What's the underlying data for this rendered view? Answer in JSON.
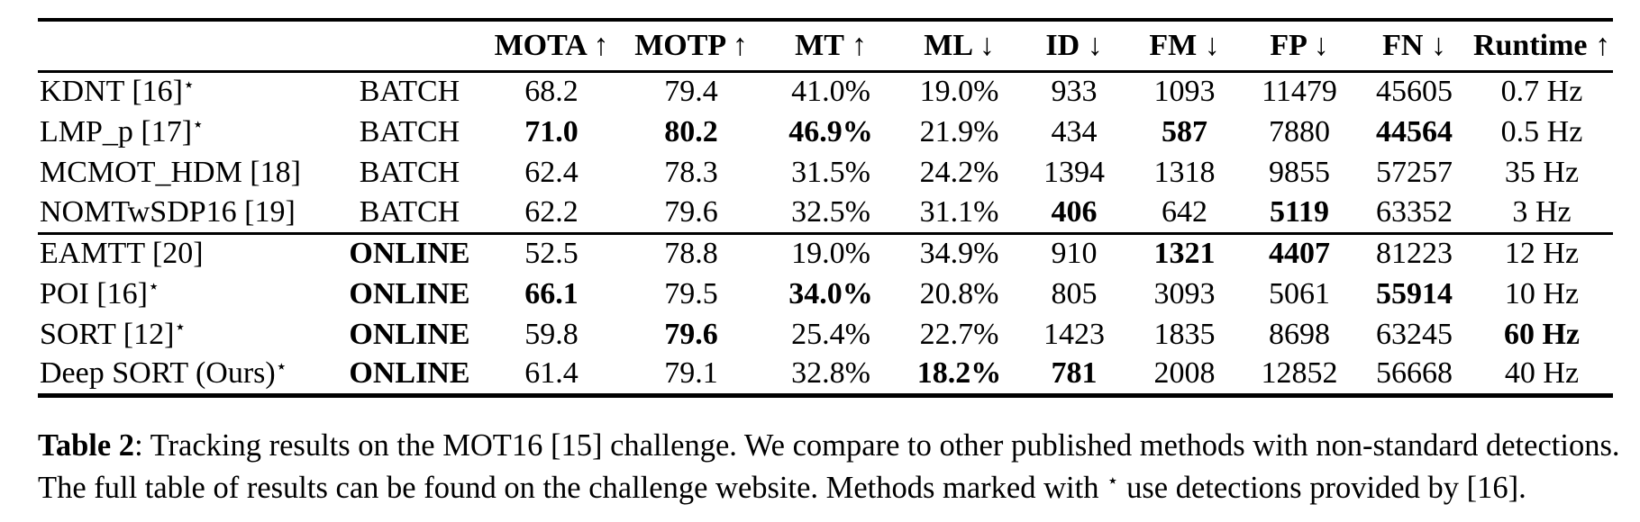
{
  "table": {
    "star_symbol": "⋆",
    "headers": {
      "method": "",
      "mode": "",
      "cols": [
        "MOTA ↑",
        "MOTP ↑",
        "MT ↑",
        "ML ↓",
        "ID ↓",
        "FM ↓",
        "FP ↓",
        "FN ↓",
        "Runtime ↑"
      ]
    },
    "groups": [
      {
        "mode_bold": false,
        "rows": [
          {
            "method": "KDNT [16]",
            "star": true,
            "mode": "BATCH",
            "values": [
              "68.2",
              "79.4",
              "41.0%",
              "19.0%",
              "933",
              "1093",
              "11479",
              "45605",
              "0.7 Hz"
            ],
            "bold": []
          },
          {
            "method": "LMP_p [17]",
            "star": true,
            "mode": "BATCH",
            "values": [
              "71.0",
              "80.2",
              "46.9%",
              "21.9%",
              "434",
              "587",
              "7880",
              "44564",
              "0.5 Hz"
            ],
            "bold": [
              0,
              1,
              2,
              5,
              7
            ]
          },
          {
            "method": "MCMOT_HDM [18]",
            "star": false,
            "mode": "BATCH",
            "values": [
              "62.4",
              "78.3",
              "31.5%",
              "24.2%",
              "1394",
              "1318",
              "9855",
              "57257",
              "35 Hz"
            ],
            "bold": []
          },
          {
            "method": "NOMTwSDP16 [19]",
            "star": false,
            "mode": "BATCH",
            "values": [
              "62.2",
              "79.6",
              "32.5%",
              "31.1%",
              "406",
              "642",
              "5119",
              "63352",
              "3 Hz"
            ],
            "bold": [
              4,
              6
            ]
          }
        ]
      },
      {
        "mode_bold": true,
        "rows": [
          {
            "method": "EAMTT [20]",
            "star": false,
            "mode": "ONLINE",
            "values": [
              "52.5",
              "78.8",
              "19.0%",
              "34.9%",
              "910",
              "1321",
              "4407",
              "81223",
              "12 Hz"
            ],
            "bold": [
              5,
              6
            ]
          },
          {
            "method": "POI [16]",
            "star": true,
            "mode": "ONLINE",
            "values": [
              "66.1",
              "79.5",
              "34.0%",
              "20.8%",
              "805",
              "3093",
              "5061",
              "55914",
              "10 Hz"
            ],
            "bold": [
              0,
              2,
              7
            ]
          },
          {
            "method": "SORT [12]",
            "star": true,
            "mode": "ONLINE",
            "values": [
              "59.8",
              "79.6",
              "25.4%",
              "22.7%",
              "1423",
              "1835",
              "8698",
              "63245",
              "60 Hz"
            ],
            "bold": [
              1,
              8
            ]
          },
          {
            "method": "Deep SORT (Ours)",
            "star": true,
            "mode": "ONLINE",
            "values": [
              "61.4",
              "79.1",
              "32.8%",
              "18.2%",
              "781",
              "2008",
              "12852",
              "56668",
              "40 Hz"
            ],
            "bold": [
              3,
              4
            ]
          }
        ]
      }
    ]
  },
  "caption": {
    "label": "Table 2",
    "sep": ": ",
    "line1": "Tracking results on the MOT16 [15] challenge. We compare to other published methods with non-standard detections.",
    "line2_pre": "The full table of results can be found on the challenge website. Methods marked with ",
    "star": "⋆",
    "line2_post": " use detections provided by [16]."
  }
}
